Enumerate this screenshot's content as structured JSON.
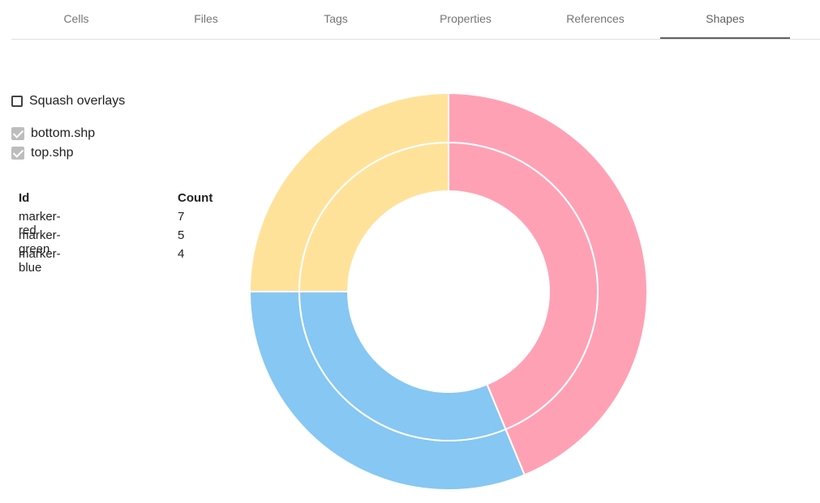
{
  "tabs": [
    {
      "label": "Cells"
    },
    {
      "label": "Files"
    },
    {
      "label": "Tags"
    },
    {
      "label": "Properties"
    },
    {
      "label": "References"
    },
    {
      "label": "Shapes",
      "active": true
    }
  ],
  "options": {
    "squash_label": "Squash overlays",
    "squash_checked": false
  },
  "layers": [
    {
      "label": "bottom.shp",
      "checked": true
    },
    {
      "label": "top.shp",
      "checked": true
    }
  ],
  "table": {
    "headers": [
      "Id",
      "Count"
    ],
    "rows": [
      [
        "marker-red",
        "7"
      ],
      [
        "marker-green",
        "5"
      ],
      [
        "marker-blue",
        "4"
      ]
    ]
  },
  "chart_data": {
    "type": "doughnut",
    "colors": [
      "#ffa1b5",
      "#86c7f3",
      "#ffe29a"
    ],
    "rings": [
      {
        "name": "outer",
        "values": [
          7,
          5,
          4
        ]
      },
      {
        "name": "inner",
        "values": [
          7,
          5,
          4
        ]
      }
    ]
  }
}
